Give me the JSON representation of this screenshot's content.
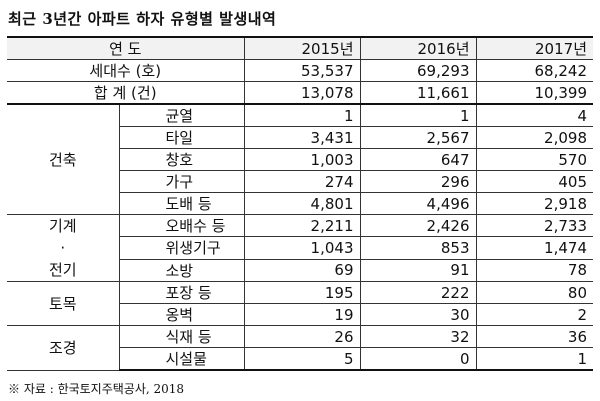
{
  "title": "최근 3년간 아파트 하자 유형별 발생내역",
  "header": {
    "label": "연 도",
    "years": [
      "2015년",
      "2016년",
      "2017년"
    ]
  },
  "households": {
    "label": "세대수 (호)",
    "values": [
      "53,537",
      "69,293",
      "68,242"
    ]
  },
  "total": {
    "label": "합 계 (건)",
    "values": [
      "13,078",
      "11,661",
      "10,399"
    ]
  },
  "groups": [
    {
      "category": [
        "건축"
      ],
      "rows": [
        {
          "label": "균열",
          "values": [
            "1",
            "1",
            "4"
          ]
        },
        {
          "label": "타일",
          "values": [
            "3,431",
            "2,567",
            "2,098"
          ]
        },
        {
          "label": "창호",
          "values": [
            "1,003",
            "647",
            "570"
          ]
        },
        {
          "label": "가구",
          "values": [
            "274",
            "296",
            "405"
          ]
        },
        {
          "label": "도배 등",
          "values": [
            "4,801",
            "4,496",
            "2,918"
          ]
        }
      ]
    },
    {
      "category": [
        "기계",
        "·",
        "전기"
      ],
      "rows": [
        {
          "label": "오배수 등",
          "values": [
            "2,211",
            "2,426",
            "2,733"
          ]
        },
        {
          "label": "위생기구",
          "values": [
            "1,043",
            "853",
            "1,474"
          ]
        },
        {
          "label": "소방",
          "values": [
            "69",
            "91",
            "78"
          ]
        }
      ]
    },
    {
      "category": [
        "토목"
      ],
      "rows": [
        {
          "label": "포장 등",
          "values": [
            "195",
            "222",
            "80"
          ]
        },
        {
          "label": "옹벽",
          "values": [
            "19",
            "30",
            "2"
          ]
        }
      ]
    },
    {
      "category": [
        "조경"
      ],
      "rows": [
        {
          "label": "식재 등",
          "values": [
            "26",
            "32",
            "36"
          ]
        },
        {
          "label": "시설물",
          "values": [
            "5",
            "0",
            "1"
          ]
        }
      ]
    }
  ],
  "footnote": "※ 자료 : 한국토지주택공사, 2018"
}
